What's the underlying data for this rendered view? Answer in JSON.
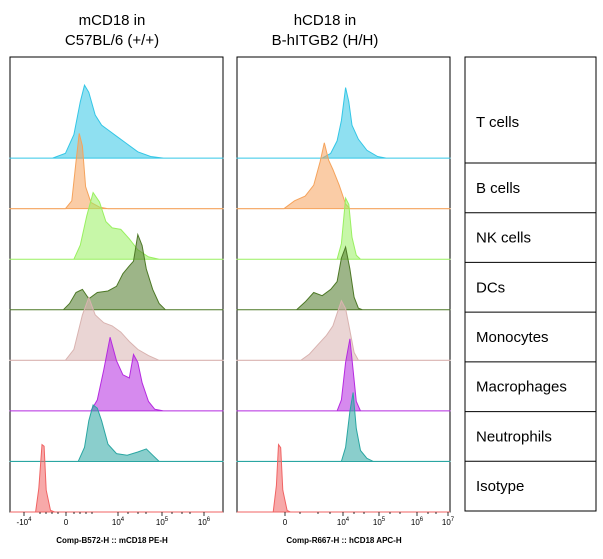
{
  "chart_data": [
    {
      "type": "histogram",
      "title_lines": [
        "mCD18 in",
        "C57BL/6 (+/+)"
      ],
      "xlabel": "Comp-B572-H :: mCD18 PE-H",
      "x_ticks": [
        "-10^4",
        "0",
        "10^4",
        "10^5",
        "10^6"
      ],
      "x_scale": "biexponential",
      "series": [
        {
          "label": "T cells",
          "color": "#33c6e6",
          "profile": [
            [
              0.0,
              0
            ],
            [
              0.2,
              0
            ],
            [
              0.26,
              0.06
            ],
            [
              0.3,
              0.3
            ],
            [
              0.33,
              0.72
            ],
            [
              0.35,
              0.93
            ],
            [
              0.37,
              0.84
            ],
            [
              0.4,
              0.55
            ],
            [
              0.43,
              0.42
            ],
            [
              0.46,
              0.36
            ],
            [
              0.5,
              0.28
            ],
            [
              0.55,
              0.18
            ],
            [
              0.6,
              0.08
            ],
            [
              0.66,
              0.02
            ],
            [
              0.72,
              0
            ],
            [
              1,
              0
            ]
          ]
        },
        {
          "label": "B cells",
          "color": "#f5a35c",
          "profile": [
            [
              0.0,
              0
            ],
            [
              0.26,
              0
            ],
            [
              0.29,
              0.1
            ],
            [
              0.31,
              0.6
            ],
            [
              0.325,
              0.96
            ],
            [
              0.34,
              0.8
            ],
            [
              0.355,
              0.28
            ],
            [
              0.38,
              0.08
            ],
            [
              0.42,
              0.02
            ],
            [
              0.46,
              0
            ],
            [
              1,
              0
            ]
          ]
        },
        {
          "label": "NK cells",
          "color": "#99f060",
          "profile": [
            [
              0.0,
              0
            ],
            [
              0.3,
              0
            ],
            [
              0.33,
              0.18
            ],
            [
              0.36,
              0.55
            ],
            [
              0.39,
              0.85
            ],
            [
              0.42,
              0.73
            ],
            [
              0.45,
              0.48
            ],
            [
              0.48,
              0.4
            ],
            [
              0.52,
              0.38
            ],
            [
              0.56,
              0.26
            ],
            [
              0.6,
              0.12
            ],
            [
              0.65,
              0.03
            ],
            [
              0.7,
              0
            ],
            [
              1,
              0
            ]
          ]
        },
        {
          "label": "DCs",
          "color": "#4d7826",
          "profile": [
            [
              0.0,
              0
            ],
            [
              0.25,
              0
            ],
            [
              0.28,
              0.08
            ],
            [
              0.31,
              0.22
            ],
            [
              0.34,
              0.26
            ],
            [
              0.37,
              0.14
            ],
            [
              0.41,
              0.22
            ],
            [
              0.46,
              0.24
            ],
            [
              0.5,
              0.3
            ],
            [
              0.53,
              0.46
            ],
            [
              0.56,
              0.56
            ],
            [
              0.58,
              0.62
            ],
            [
              0.6,
              0.96
            ],
            [
              0.62,
              0.82
            ],
            [
              0.64,
              0.52
            ],
            [
              0.67,
              0.26
            ],
            [
              0.7,
              0.08
            ],
            [
              0.73,
              0
            ],
            [
              1,
              0
            ]
          ]
        },
        {
          "label": "Monocytes",
          "color": "#d9b3b0",
          "profile": [
            [
              0.0,
              0
            ],
            [
              0.26,
              0
            ],
            [
              0.3,
              0.14
            ],
            [
              0.34,
              0.58
            ],
            [
              0.37,
              0.8
            ],
            [
              0.4,
              0.58
            ],
            [
              0.44,
              0.48
            ],
            [
              0.48,
              0.44
            ],
            [
              0.52,
              0.36
            ],
            [
              0.56,
              0.24
            ],
            [
              0.6,
              0.14
            ],
            [
              0.65,
              0.06
            ],
            [
              0.7,
              0
            ],
            [
              1,
              0
            ]
          ]
        },
        {
          "label": "Macrophages",
          "color": "#b52ae0",
          "profile": [
            [
              0.0,
              0
            ],
            [
              0.38,
              0
            ],
            [
              0.41,
              0.14
            ],
            [
              0.44,
              0.52
            ],
            [
              0.47,
              0.94
            ],
            [
              0.5,
              0.64
            ],
            [
              0.53,
              0.46
            ],
            [
              0.56,
              0.42
            ],
            [
              0.58,
              0.72
            ],
            [
              0.6,
              0.62
            ],
            [
              0.62,
              0.36
            ],
            [
              0.65,
              0.12
            ],
            [
              0.68,
              0.02
            ],
            [
              0.72,
              0
            ],
            [
              1,
              0
            ]
          ]
        },
        {
          "label": "Neutrophils",
          "color": "#2aa6a2",
          "profile": [
            [
              0.0,
              0
            ],
            [
              0.32,
              0
            ],
            [
              0.35,
              0.18
            ],
            [
              0.37,
              0.52
            ],
            [
              0.39,
              0.72
            ],
            [
              0.41,
              0.68
            ],
            [
              0.43,
              0.52
            ],
            [
              0.46,
              0.22
            ],
            [
              0.5,
              0.1
            ],
            [
              0.55,
              0.08
            ],
            [
              0.6,
              0.12
            ],
            [
              0.64,
              0.16
            ],
            [
              0.67,
              0.08
            ],
            [
              0.7,
              0
            ],
            [
              1,
              0
            ]
          ]
        },
        {
          "label": "Isotype",
          "color": "#f06363",
          "profile": [
            [
              0.0,
              0
            ],
            [
              0.12,
              0
            ],
            [
              0.135,
              0.3
            ],
            [
              0.15,
              0.86
            ],
            [
              0.16,
              0.84
            ],
            [
              0.17,
              0.28
            ],
            [
              0.19,
              0.02
            ],
            [
              0.21,
              0
            ],
            [
              1,
              0
            ]
          ]
        }
      ]
    },
    {
      "type": "histogram",
      "title_lines": [
        "hCD18 in",
        "B-hITGB2 (H/H)"
      ],
      "xlabel": "Comp-R667-H :: hCD18 APC-H",
      "x_ticks": [
        "0",
        "10^4",
        "10^5",
        "10^6",
        "10^7"
      ],
      "x_scale": "biexponential",
      "series": [
        {
          "label": "T cells",
          "color": "#33c6e6",
          "profile": [
            [
              0.0,
              0
            ],
            [
              0.4,
              0
            ],
            [
              0.44,
              0.06
            ],
            [
              0.47,
              0.22
            ],
            [
              0.49,
              0.48
            ],
            [
              0.51,
              0.9
            ],
            [
              0.525,
              0.72
            ],
            [
              0.54,
              0.42
            ],
            [
              0.57,
              0.24
            ],
            [
              0.61,
              0.1
            ],
            [
              0.66,
              0.02
            ],
            [
              0.7,
              0
            ],
            [
              1,
              0
            ]
          ]
        },
        {
          "label": "B cells",
          "color": "#f5a35c",
          "profile": [
            [
              0.0,
              0
            ],
            [
              0.22,
              0
            ],
            [
              0.27,
              0.1
            ],
            [
              0.32,
              0.16
            ],
            [
              0.36,
              0.3
            ],
            [
              0.39,
              0.6
            ],
            [
              0.41,
              0.84
            ],
            [
              0.43,
              0.62
            ],
            [
              0.45,
              0.5
            ],
            [
              0.48,
              0.3
            ],
            [
              0.51,
              0.06
            ],
            [
              0.53,
              0
            ],
            [
              1,
              0
            ]
          ]
        },
        {
          "label": "NK cells",
          "color": "#99f060",
          "profile": [
            [
              0.0,
              0
            ],
            [
              0.47,
              0
            ],
            [
              0.49,
              0.2
            ],
            [
              0.51,
              0.78
            ],
            [
              0.525,
              0.7
            ],
            [
              0.54,
              0.28
            ],
            [
              0.56,
              0.05
            ],
            [
              0.58,
              0
            ],
            [
              1,
              0
            ]
          ]
        },
        {
          "label": "DCs",
          "color": "#4d7826",
          "profile": [
            [
              0.0,
              0
            ],
            [
              0.28,
              0
            ],
            [
              0.32,
              0.1
            ],
            [
              0.36,
              0.22
            ],
            [
              0.4,
              0.18
            ],
            [
              0.44,
              0.26
            ],
            [
              0.47,
              0.36
            ],
            [
              0.49,
              0.66
            ],
            [
              0.51,
              0.8
            ],
            [
              0.53,
              0.52
            ],
            [
              0.55,
              0.16
            ],
            [
              0.57,
              0.02
            ],
            [
              0.59,
              0
            ],
            [
              1,
              0
            ]
          ]
        },
        {
          "label": "Monocytes",
          "color": "#d9b3b0",
          "profile": [
            [
              0.0,
              0
            ],
            [
              0.3,
              0
            ],
            [
              0.34,
              0.08
            ],
            [
              0.38,
              0.2
            ],
            [
              0.42,
              0.32
            ],
            [
              0.45,
              0.44
            ],
            [
              0.47,
              0.6
            ],
            [
              0.49,
              0.76
            ],
            [
              0.51,
              0.66
            ],
            [
              0.53,
              0.38
            ],
            [
              0.55,
              0.1
            ],
            [
              0.57,
              0
            ],
            [
              1,
              0
            ]
          ]
        },
        {
          "label": "Macrophages",
          "color": "#b52ae0",
          "profile": [
            [
              0.0,
              0
            ],
            [
              0.47,
              0
            ],
            [
              0.49,
              0.14
            ],
            [
              0.51,
              0.62
            ],
            [
              0.53,
              0.92
            ],
            [
              0.545,
              0.52
            ],
            [
              0.56,
              0.12
            ],
            [
              0.58,
              0
            ],
            [
              1,
              0
            ]
          ]
        },
        {
          "label": "Neutrophils",
          "color": "#2aa6a2",
          "profile": [
            [
              0.0,
              0
            ],
            [
              0.49,
              0
            ],
            [
              0.51,
              0.18
            ],
            [
              0.53,
              0.64
            ],
            [
              0.545,
              0.88
            ],
            [
              0.56,
              0.42
            ],
            [
              0.58,
              0.14
            ],
            [
              0.61,
              0.04
            ],
            [
              0.64,
              0
            ],
            [
              1,
              0
            ]
          ]
        },
        {
          "label": "Isotype",
          "color": "#f06363",
          "profile": [
            [
              0.0,
              0
            ],
            [
              0.17,
              0
            ],
            [
              0.185,
              0.34
            ],
            [
              0.195,
              0.86
            ],
            [
              0.205,
              0.82
            ],
            [
              0.215,
              0.28
            ],
            [
              0.235,
              0.02
            ],
            [
              0.25,
              0
            ],
            [
              1,
              0
            ]
          ]
        }
      ]
    }
  ],
  "row_labels": [
    "T cells",
    "B cells",
    "NK cells",
    "DCs",
    "Monocytes",
    "Macrophages",
    "Neutrophils",
    "Isotype"
  ]
}
